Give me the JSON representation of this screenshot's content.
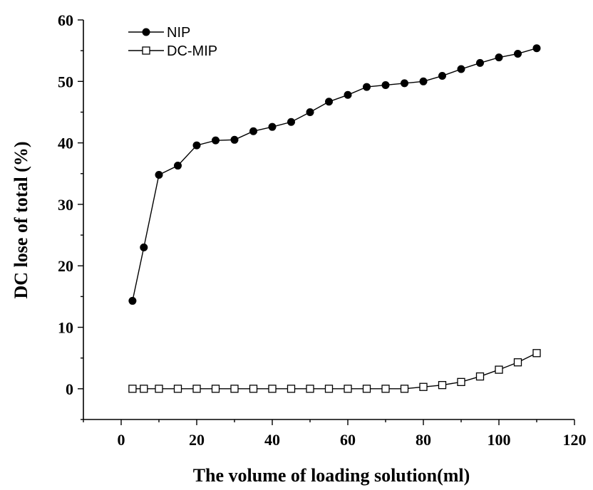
{
  "chart_data": {
    "type": "line",
    "xlabel": "The volume of loading solution(ml)",
    "ylabel": "DC lose of total (%)",
    "xlim": [
      -10,
      120
    ],
    "ylim": [
      -5,
      60
    ],
    "xticks": [
      0,
      20,
      40,
      60,
      80,
      100,
      120
    ],
    "yticks": [
      0,
      10,
      20,
      30,
      40,
      50,
      60
    ],
    "xtick_labels": [
      "0",
      "20",
      "40",
      "60",
      "80",
      "100",
      "120"
    ],
    "ytick_labels": [
      "0",
      "10",
      "20",
      "30",
      "40",
      "50",
      "60"
    ],
    "x_minor_step": 10,
    "y_minor_step": 5,
    "legend_position": "top-left",
    "series": [
      {
        "name": "NIP",
        "marker": "filled-circle",
        "color": "#000000",
        "x": [
          3,
          6,
          10,
          15,
          20,
          25,
          30,
          35,
          40,
          45,
          50,
          55,
          60,
          65,
          70,
          75,
          80,
          85,
          90,
          95,
          100,
          105,
          110
        ],
        "y": [
          14.3,
          23.0,
          34.8,
          36.3,
          39.6,
          40.4,
          40.5,
          41.9,
          42.6,
          43.4,
          45.0,
          46.7,
          47.8,
          49.1,
          49.4,
          49.7,
          50.0,
          50.9,
          52.0,
          53.0,
          53.9,
          54.5,
          55.4
        ]
      },
      {
        "name": "DC-MIP",
        "marker": "open-square",
        "color": "#000000",
        "x": [
          3,
          6,
          10,
          15,
          20,
          25,
          30,
          35,
          40,
          45,
          50,
          55,
          60,
          65,
          70,
          75,
          80,
          85,
          90,
          95,
          100,
          105,
          110
        ],
        "y": [
          0,
          0,
          0,
          0,
          0,
          0,
          0,
          0,
          0,
          0,
          0,
          0,
          0,
          0,
          0,
          0,
          0.3,
          0.6,
          1.1,
          2.0,
          3.1,
          4.3,
          5.8
        ]
      }
    ]
  }
}
